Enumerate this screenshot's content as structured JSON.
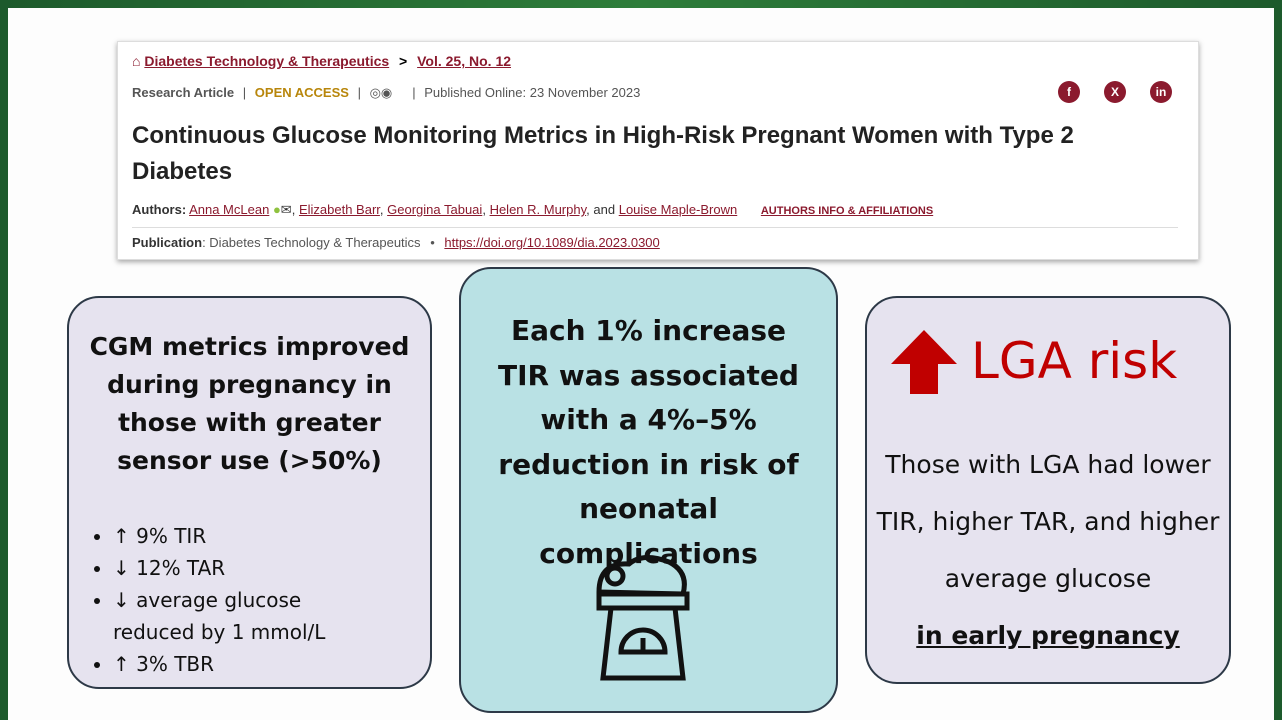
{
  "header": {
    "journal": "Diabetes Technology & Therapeutics",
    "separator": ">",
    "issue": "Vol. 25, No. 12",
    "article_type": "Research Article",
    "divider": "|",
    "access": "OPEN ACCESS",
    "published": "Published Online: 23 November 2023",
    "social": [
      "f",
      "X",
      "in"
    ],
    "title": "Continuous Glucose Monitoring Metrics in High-Risk Pregnant Women with Type 2 Diabetes",
    "authors_label": "Authors:",
    "authors": [
      "Anna McLean",
      "Elizabeth Barr",
      "Georgina Tabuai",
      "Helen R. Murphy",
      "Louise Maple-Brown"
    ],
    "author_separator": ",",
    "and": "and",
    "affiliations": "AUTHORS INFO & AFFILIATIONS",
    "publication_label": "Publication",
    "publication": "Diabetes Technology & Therapeutics",
    "bullet": "•",
    "doi": "https://doi.org/10.1089/dia.2023.0300"
  },
  "boxes": {
    "left": {
      "heading": "CGM metrics improved during pregnancy in those with greater sensor use (>50%)",
      "items": [
        "↑ 9% TIR",
        "↓ 12% TAR",
        "↓ average glucose reduced by 1 mmol/L",
        "↑ 3% TBR"
      ]
    },
    "middle": {
      "text": "Each 1% increase TIR was associated with a 4%–5% reduction in risk of neonatal complications"
    },
    "right": {
      "heading": "LGA risk",
      "text": "Those with LGA had lower TIR, higher TAR, and higher average glucose",
      "emphasis": "in early pregnancy"
    }
  }
}
